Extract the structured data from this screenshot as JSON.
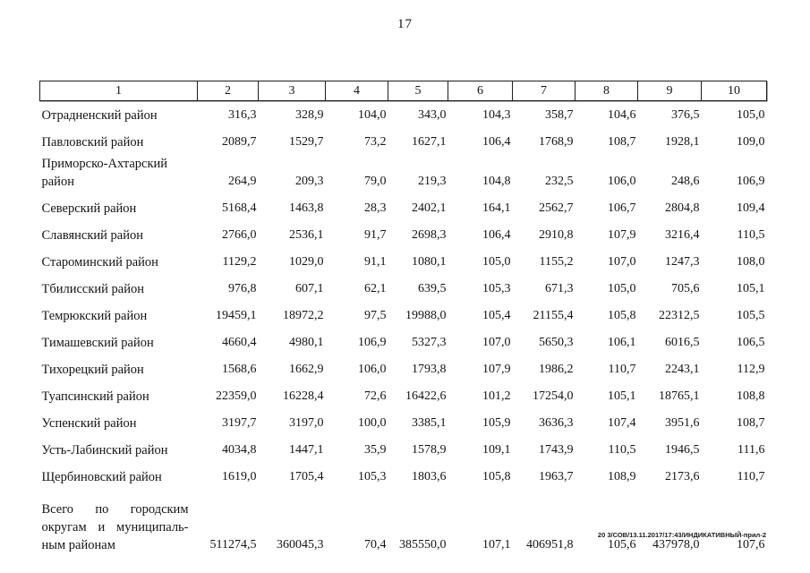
{
  "page_number": "17",
  "footer": "20 3/СОВ/13.11.2017/17:43/ИНДИКАТИВНЫЙ-прил-2",
  "table": {
    "columns": [
      "1",
      "2",
      "3",
      "4",
      "5",
      "6",
      "7",
      "8",
      "9",
      "10"
    ],
    "rows": [
      {
        "name": "Отрадненский район",
        "values": [
          "316,3",
          "328,9",
          "104,0",
          "343,0",
          "104,3",
          "358,7",
          "104,6",
          "376,5",
          "105,0"
        ]
      },
      {
        "name": "Павловский район",
        "values": [
          "2089,7",
          "1529,7",
          "73,2",
          "1627,1",
          "106,4",
          "1768,9",
          "108,7",
          "1928,1",
          "109,0"
        ]
      },
      {
        "name": "Приморско-Ахтарский район",
        "values": [
          "264,9",
          "209,3",
          "79,0",
          "219,3",
          "104,8",
          "232,5",
          "106,0",
          "248,6",
          "106,9"
        ]
      },
      {
        "name": "Северский район",
        "values": [
          "5168,4",
          "1463,8",
          "28,3",
          "2402,1",
          "164,1",
          "2562,7",
          "106,7",
          "2804,8",
          "109,4"
        ]
      },
      {
        "name": "Славянский район",
        "values": [
          "2766,0",
          "2536,1",
          "91,7",
          "2698,3",
          "106,4",
          "2910,8",
          "107,9",
          "3216,4",
          "110,5"
        ]
      },
      {
        "name": "Староминский район",
        "values": [
          "1129,2",
          "1029,0",
          "91,1",
          "1080,1",
          "105,0",
          "1155,2",
          "107,0",
          "1247,3",
          "108,0"
        ]
      },
      {
        "name": "Тбилисский район",
        "values": [
          "976,8",
          "607,1",
          "62,1",
          "639,5",
          "105,3",
          "671,3",
          "105,0",
          "705,6",
          "105,1"
        ]
      },
      {
        "name": "Темрюкский район",
        "values": [
          "19459,1",
          "18972,2",
          "97,5",
          "19988,0",
          "105,4",
          "21155,4",
          "105,8",
          "22312,5",
          "105,5"
        ]
      },
      {
        "name": "Тимашевский район",
        "values": [
          "4660,4",
          "4980,1",
          "106,9",
          "5327,3",
          "107,0",
          "5650,3",
          "106,1",
          "6016,5",
          "106,5"
        ]
      },
      {
        "name": "Тихорецкий район",
        "values": [
          "1568,6",
          "1662,9",
          "106,0",
          "1793,8",
          "107,9",
          "1986,2",
          "110,7",
          "2243,1",
          "112,9"
        ]
      },
      {
        "name": "Туапсинский район",
        "values": [
          "22359,0",
          "16228,4",
          "72,6",
          "16422,6",
          "101,2",
          "17254,0",
          "105,1",
          "18765,1",
          "108,8"
        ]
      },
      {
        "name": "Успенский район",
        "values": [
          "3197,7",
          "3197,0",
          "100,0",
          "3385,1",
          "105,9",
          "3636,3",
          "107,4",
          "3951,6",
          "108,7"
        ]
      },
      {
        "name": "Усть-Лабинский район",
        "values": [
          "4034,8",
          "1447,1",
          "35,9",
          "1578,9",
          "109,1",
          "1743,9",
          "110,5",
          "1946,5",
          "111,6"
        ]
      },
      {
        "name": "Щербиновский район",
        "values": [
          "1619,0",
          "1705,4",
          "105,3",
          "1803,6",
          "105,8",
          "1963,7",
          "108,9",
          "2173,6",
          "110,7"
        ]
      }
    ],
    "total": {
      "name_lines": [
        "Всего по городским",
        "округам и муниципаль-",
        "ным районам"
      ],
      "values": [
        "511274,5",
        "360045,3",
        "70,4",
        "385550,0",
        "107,1",
        "406951,8",
        "105,6",
        "437978,0",
        "107,6"
      ]
    }
  }
}
